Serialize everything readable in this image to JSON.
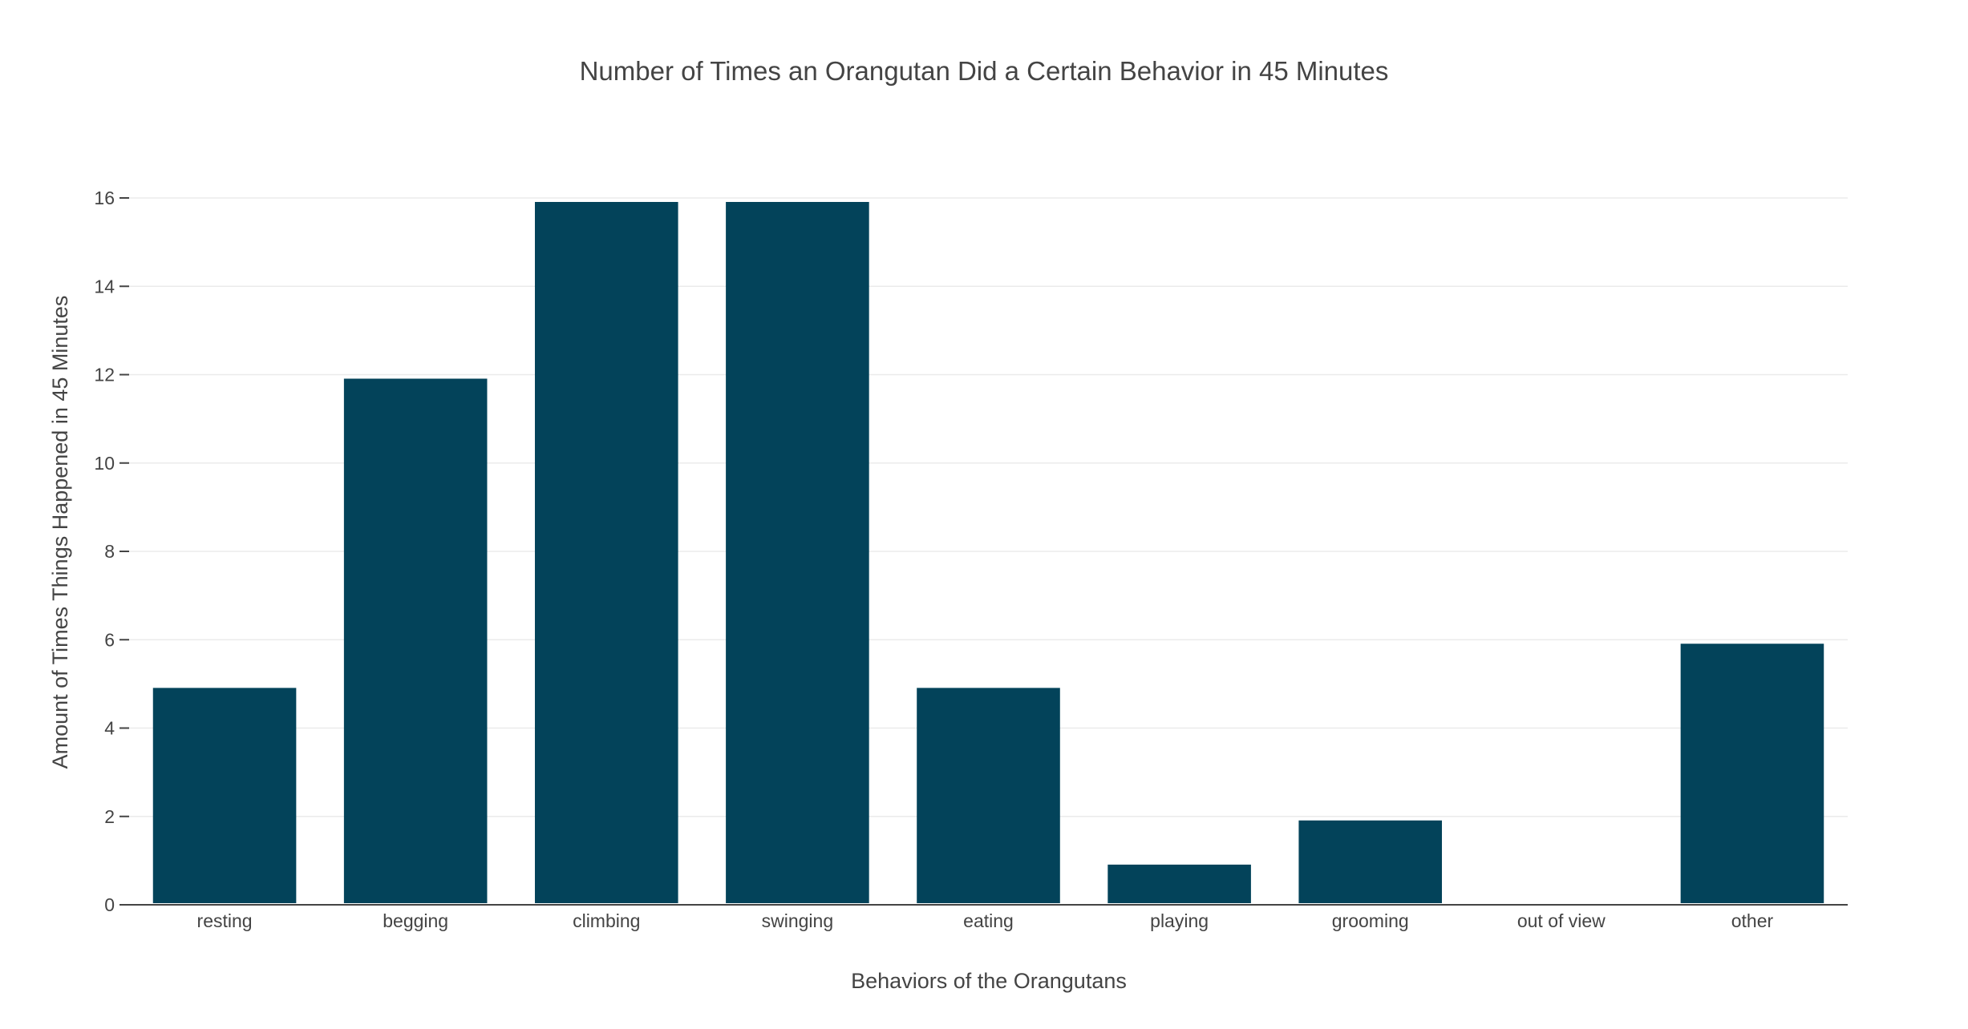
{
  "chart_data": {
    "type": "bar",
    "title": "Number of Times an Orangutan Did a Certain Behavior in 45 Minutes",
    "xlabel": "Behaviors of the Orangutans",
    "ylabel": "Amount of Times Things Happened in 45 Minutes",
    "categories": [
      "resting",
      "begging",
      "climbing",
      "swinging",
      "eating",
      "playing",
      "grooming",
      "out of view",
      "other"
    ],
    "values": [
      5,
      12,
      16,
      16,
      5,
      1,
      2,
      0,
      6
    ],
    "ylim": [
      0,
      16
    ],
    "yticks": [
      "0",
      "2",
      "4",
      "6",
      "8",
      "10",
      "12",
      "14",
      "16"
    ],
    "grid": true,
    "legend": "none",
    "bar_color": "#03435a"
  }
}
